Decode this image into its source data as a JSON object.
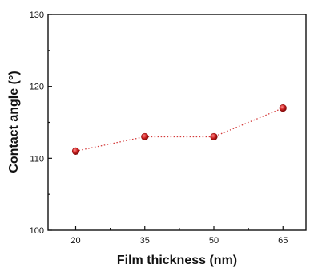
{
  "chart_data": {
    "type": "scatter",
    "xlabel": "Film thickness (nm)",
    "ylabel": "Contact angle (°)",
    "x": [
      20,
      35,
      50,
      65
    ],
    "y": [
      111,
      113,
      113,
      117
    ],
    "xticks": [
      "20",
      "35",
      "50",
      "65"
    ],
    "yticks": [
      "100",
      "110",
      "120",
      "130"
    ],
    "xlim": [
      14,
      70
    ],
    "ylim": [
      100,
      130
    ],
    "grid": false,
    "connector": "dotted",
    "marker_color": "#cc1f1f",
    "line_color": "#d43a3a"
  }
}
